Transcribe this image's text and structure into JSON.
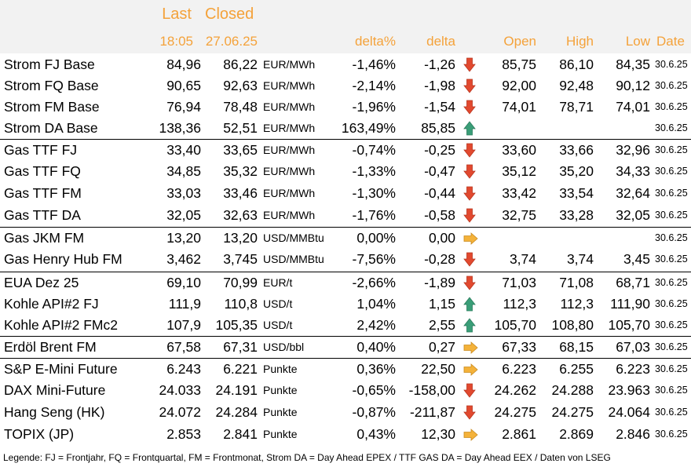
{
  "header": {
    "last": "Last",
    "closed": "Closed",
    "last_time": "18:05",
    "closed_date": "27.06.25",
    "delta_pct": "delta%",
    "delta": "delta",
    "open": "Open",
    "high": "High",
    "low": "Low",
    "date": "Date"
  },
  "colors": {
    "header_text": "#f4a23a",
    "header_bg": "#f2f2f2",
    "arrow_down": "#e2492f",
    "arrow_up": "#3a9e78",
    "arrow_right": "#f4b23a"
  },
  "rows": [
    {
      "name": "Strom FJ Base",
      "last": "84,96",
      "closed": "86,22",
      "unit": "EUR/MWh",
      "pct": "-1,46%",
      "delta": "-1,26",
      "arrow": "down-arrow-icon",
      "open": "85,75",
      "high": "86,10",
      "low": "84,35",
      "date": "30.6.25"
    },
    {
      "name": "Strom FQ Base",
      "last": "90,65",
      "closed": "92,63",
      "unit": "EUR/MWh",
      "pct": "-2,14%",
      "delta": "-1,98",
      "arrow": "down-arrow-icon",
      "open": "92,00",
      "high": "92,48",
      "low": "90,12",
      "date": "30.6.25"
    },
    {
      "name": "Strom FM Base",
      "last": "76,94",
      "closed": "78,48",
      "unit": "EUR/MWh",
      "pct": "-1,96%",
      "delta": "-1,54",
      "arrow": "down-arrow-icon",
      "open": "74,01",
      "high": "78,71",
      "low": "74,01",
      "date": "30.6.25"
    },
    {
      "name": "Strom DA Base",
      "last": "138,36",
      "closed": "52,51",
      "unit": "EUR/MWh",
      "pct": "163,49%",
      "delta": "85,85",
      "arrow": "up-arrow-icon",
      "open": "",
      "high": "",
      "low": "",
      "date": "30.6.25"
    },
    {
      "name": "Gas TTF FJ",
      "last": "33,40",
      "closed": "33,65",
      "unit": "EUR/MWh",
      "pct": "-0,74%",
      "delta": "-0,25",
      "arrow": "down-arrow-icon",
      "open": "33,60",
      "high": "33,66",
      "low": "32,96",
      "date": "30.6.25"
    },
    {
      "name": "Gas TTF FQ",
      "last": "34,85",
      "closed": "35,32",
      "unit": "EUR/MWh",
      "pct": "-1,33%",
      "delta": "-0,47",
      "arrow": "down-arrow-icon",
      "open": "35,12",
      "high": "35,20",
      "low": "34,33",
      "date": "30.6.25"
    },
    {
      "name": "Gas TTF FM",
      "last": "33,03",
      "closed": "33,46",
      "unit": "EUR/MWh",
      "pct": "-1,30%",
      "delta": "-0,44",
      "arrow": "down-arrow-icon",
      "open": "33,42",
      "high": "33,54",
      "low": "32,64",
      "date": "30.6.25"
    },
    {
      "name": "Gas TTF DA",
      "last": "32,05",
      "closed": "32,63",
      "unit": "EUR/MWh",
      "pct": "-1,76%",
      "delta": "-0,58",
      "arrow": "down-arrow-icon",
      "open": "32,75",
      "high": "33,28",
      "low": "32,05",
      "date": "30.6.25"
    },
    {
      "name": "Gas JKM FM",
      "last": "13,20",
      "closed": "13,20",
      "unit": "USD/MMBtu",
      "pct": "0,00%",
      "delta": "0,00",
      "arrow": "right-arrow-icon",
      "open": "",
      "high": "",
      "low": "",
      "date": "30.6.25"
    },
    {
      "name": "Gas Henry Hub FM",
      "last": "3,462",
      "closed": "3,745",
      "unit": "USD/MMBtu",
      "pct": "-7,56%",
      "delta": "-0,28",
      "arrow": "down-arrow-icon",
      "open": "3,74",
      "high": "3,74",
      "low": "3,45",
      "date": "30.6.25"
    },
    {
      "name": "EUA Dez 25",
      "last": "69,10",
      "closed": "70,99",
      "unit": "EUR/t",
      "pct": "-2,66%",
      "delta": "-1,89",
      "arrow": "down-arrow-icon",
      "open": "71,03",
      "high": "71,08",
      "low": "68,71",
      "date": "30.6.25"
    },
    {
      "name": "Kohle API#2 FJ",
      "last": "111,9",
      "closed": "110,8",
      "unit": "USD/t",
      "pct": "1,04%",
      "delta": "1,15",
      "arrow": "up-arrow-icon",
      "open": "112,3",
      "high": "112,3",
      "low": "111,90",
      "date": "30.6.25"
    },
    {
      "name": "Kohle API#2 FMc2",
      "last": "107,9",
      "closed": "105,35",
      "unit": "USD/t",
      "pct": "2,42%",
      "delta": "2,55",
      "arrow": "up-arrow-icon",
      "open": "105,70",
      "high": "108,80",
      "low": "105,70",
      "date": "30.6.25"
    },
    {
      "name": "Erdöl Brent FM",
      "last": "67,58",
      "closed": "67,31",
      "unit": "USD/bbl",
      "pct": "0,40%",
      "delta": "0,27",
      "arrow": "right-arrow-icon",
      "open": "67,33",
      "high": "68,15",
      "low": "67,03",
      "date": "30.6.25"
    },
    {
      "name": "S&P E-Mini Future",
      "last": "6.243",
      "closed": "6.221",
      "unit": "Punkte",
      "pct": "0,36%",
      "delta": "22,50",
      "arrow": "right-arrow-icon",
      "open": "6.223",
      "high": "6.255",
      "low": "6.223",
      "date": "30.6.25"
    },
    {
      "name": "DAX Mini-Future",
      "last": "24.033",
      "closed": "24.191",
      "unit": "Punkte",
      "pct": "-0,65%",
      "delta": "-158,00",
      "arrow": "down-arrow-icon",
      "open": "24.262",
      "high": "24.288",
      "low": "23.963",
      "date": "30.6.25"
    },
    {
      "name": "Hang Seng (HK)",
      "last": "24.072",
      "closed": "24.284",
      "unit": "Punkte",
      "pct": "-0,87%",
      "delta": "-211,87",
      "arrow": "down-arrow-icon",
      "open": "24.275",
      "high": "24.275",
      "low": "24.064",
      "date": "30.6.25"
    },
    {
      "name": "TOPIX (JP)",
      "last": "2.853",
      "closed": "2.841",
      "unit": "Punkte",
      "pct": "0,43%",
      "delta": "12,30",
      "arrow": "right-arrow-icon",
      "open": "2.861",
      "high": "2.869",
      "low": "2.846",
      "date": "30.6.25"
    }
  ],
  "legend": "Legende: FJ = Frontjahr, FQ = Frontquartal, FM = Frontmonat, Strom DA = Day Ahead EPEX / TTF GAS DA = Day Ahead EEX / Daten von LSEG"
}
